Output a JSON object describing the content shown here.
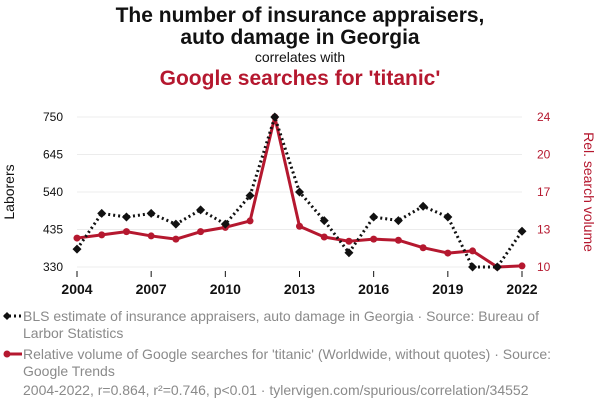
{
  "header": {
    "title_line1": "The number of insurance appraisers,",
    "title_line2": "auto damage in Georgia",
    "subtitle": "correlates with",
    "title2": "Google searches for 'titanic'"
  },
  "legend": {
    "series1": "BLS estimate of insurance appraisers, auto damage in Georgia · Source: Bureau of Larbor Statistics",
    "series2": "Relative volume of Google searches for 'titanic' (Worldwide, without quotes) · Source: Google Trends"
  },
  "footer": "2004-2022, r=0.864, r²=0.746, p<0.01 · tylervigen.com/spurious/correlation/34552",
  "colors": {
    "series1": "#111111",
    "series2": "#b5182f"
  },
  "chart_data": {
    "type": "line",
    "x": [
      2004,
      2005,
      2006,
      2007,
      2008,
      2009,
      2010,
      2011,
      2012,
      2013,
      2014,
      2015,
      2016,
      2017,
      2018,
      2019,
      2020,
      2021,
      2022
    ],
    "xticks": [
      "2004",
      "2007",
      "2010",
      "2013",
      "2016",
      "2019",
      "2022"
    ],
    "xtick_values": [
      2004,
      2007,
      2010,
      2013,
      2016,
      2019,
      2022
    ],
    "xlim": [
      2004,
      2022
    ],
    "yleft": {
      "label": "Laborers",
      "ticks": [
        "330",
        "435",
        "540",
        "645",
        "750"
      ],
      "tick_values": [
        330,
        435,
        540,
        645,
        750
      ],
      "lim": [
        330,
        750
      ]
    },
    "yright": {
      "label": "Rel. search volume",
      "ticks": [
        "10",
        "13",
        "17",
        "20",
        "24"
      ],
      "tick_values": [
        10,
        13.5,
        17,
        20.5,
        24
      ],
      "lim": [
        10,
        24
      ]
    },
    "series": [
      {
        "name": "BLS estimate of insurance appraisers, auto damage in Georgia",
        "axis": "left",
        "style": "dotted",
        "marker": "diamond",
        "values": [
          380,
          480,
          470,
          480,
          450,
          490,
          450,
          530,
          750,
          540,
          460,
          370,
          470,
          460,
          500,
          470,
          330,
          330,
          430
        ]
      },
      {
        "name": "Relative volume of Google searches for 'titanic'",
        "axis": "right",
        "style": "solid",
        "marker": "circle",
        "values": [
          12.7,
          13.0,
          13.3,
          12.9,
          12.6,
          13.3,
          13.7,
          14.3,
          24.0,
          13.8,
          12.8,
          12.4,
          12.6,
          12.5,
          11.8,
          11.3,
          11.5,
          10.0,
          10.1
        ]
      }
    ]
  }
}
